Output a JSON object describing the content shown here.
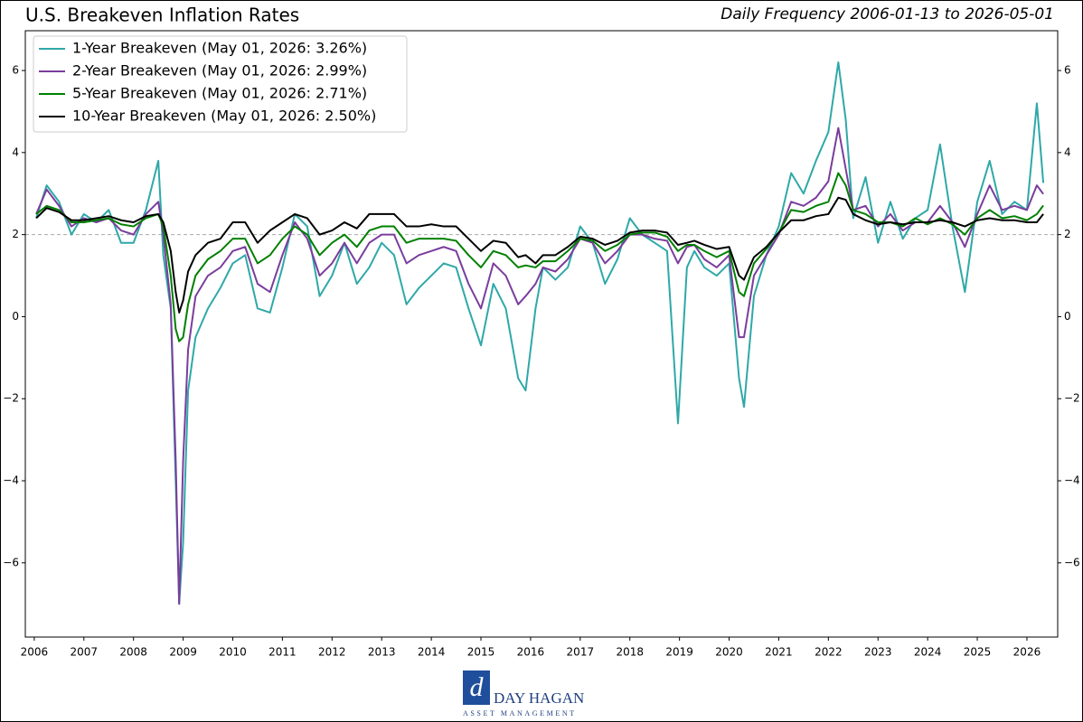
{
  "chart_data": {
    "type": "line",
    "title": "U.S. Breakeven Inflation Rates",
    "subtitle": "Daily Frequency 2006-01-13 to 2026-05-01",
    "x": [
      2006.04,
      2006.25,
      2006.5,
      2006.75,
      2007.0,
      2007.25,
      2007.5,
      2007.75,
      2008.0,
      2008.25,
      2008.5,
      2008.6,
      2008.75,
      2008.85,
      2008.92,
      2009.0,
      2009.1,
      2009.25,
      2009.5,
      2009.75,
      2010.0,
      2010.25,
      2010.5,
      2010.75,
      2011.0,
      2011.25,
      2011.5,
      2011.75,
      2012.0,
      2012.25,
      2012.5,
      2012.75,
      2013.0,
      2013.25,
      2013.5,
      2013.75,
      2014.0,
      2014.25,
      2014.5,
      2014.75,
      2015.0,
      2015.25,
      2015.5,
      2015.75,
      2015.9,
      2016.1,
      2016.25,
      2016.5,
      2016.75,
      2017.0,
      2017.25,
      2017.5,
      2017.75,
      2018.0,
      2018.25,
      2018.5,
      2018.75,
      2018.97,
      2019.15,
      2019.3,
      2019.5,
      2019.75,
      2020.0,
      2020.2,
      2020.3,
      2020.5,
      2020.75,
      2021.0,
      2021.25,
      2021.5,
      2021.75,
      2022.0,
      2022.2,
      2022.35,
      2022.5,
      2022.75,
      2023.0,
      2023.25,
      2023.5,
      2023.75,
      2024.0,
      2024.25,
      2024.5,
      2024.75,
      2025.0,
      2025.25,
      2025.5,
      2025.75,
      2026.0,
      2026.2,
      2026.33
    ],
    "series": [
      {
        "name": "1-Year Breakeven (May 01, 2026: 3.26%)",
        "color": "#2fa8a8",
        "values": [
          2.4,
          3.2,
          2.8,
          2.0,
          2.5,
          2.3,
          2.6,
          1.8,
          1.8,
          2.6,
          3.8,
          1.5,
          0.2,
          -4,
          -7.0,
          -5.5,
          -1.8,
          -0.5,
          0.2,
          0.7,
          1.3,
          1.5,
          0.2,
          0.1,
          1.2,
          2.5,
          2.2,
          0.5,
          1.0,
          1.8,
          0.8,
          1.2,
          1.8,
          1.5,
          0.3,
          0.7,
          1.0,
          1.3,
          1.2,
          0.2,
          -0.7,
          0.8,
          0.2,
          -1.5,
          -1.8,
          0.2,
          1.2,
          0.9,
          1.2,
          2.2,
          1.8,
          0.8,
          1.4,
          2.4,
          2.0,
          1.8,
          1.6,
          -2.6,
          1.2,
          1.6,
          1.2,
          1.0,
          1.3,
          -1.5,
          -2.2,
          0.5,
          1.5,
          2.2,
          3.5,
          3.0,
          3.8,
          4.5,
          6.2,
          4.8,
          2.4,
          3.4,
          1.8,
          2.8,
          1.9,
          2.4,
          2.6,
          4.2,
          2.2,
          0.6,
          2.8,
          3.8,
          2.5,
          2.8,
          2.6,
          5.2,
          3.26
        ]
      },
      {
        "name": "2-Year Breakeven (May 01, 2026: 2.99%)",
        "color": "#7a3d9c",
        "values": [
          2.5,
          3.1,
          2.7,
          2.2,
          2.4,
          2.3,
          2.4,
          2.1,
          2.0,
          2.5,
          2.8,
          2.0,
          0.3,
          -3.5,
          -7.0,
          -3.5,
          -0.8,
          0.5,
          1.0,
          1.2,
          1.6,
          1.7,
          0.8,
          0.6,
          1.5,
          2.3,
          1.9,
          1.0,
          1.3,
          1.8,
          1.3,
          1.8,
          2.0,
          2.0,
          1.3,
          1.5,
          1.6,
          1.7,
          1.6,
          0.8,
          0.2,
          1.3,
          1.0,
          0.3,
          0.5,
          0.8,
          1.2,
          1.1,
          1.4,
          1.9,
          1.8,
          1.3,
          1.6,
          2.0,
          2.0,
          1.9,
          1.85,
          1.3,
          1.7,
          1.75,
          1.4,
          1.2,
          1.5,
          -0.5,
          -0.5,
          1.0,
          1.5,
          2.0,
          2.8,
          2.7,
          2.9,
          3.3,
          4.6,
          3.6,
          2.6,
          2.7,
          2.2,
          2.5,
          2.1,
          2.3,
          2.3,
          2.7,
          2.3,
          1.7,
          2.5,
          3.2,
          2.6,
          2.7,
          2.6,
          3.2,
          2.99
        ]
      },
      {
        "name": "5-Year Breakeven (May 01, 2026: 2.71%)",
        "color": "#008000",
        "values": [
          2.5,
          2.7,
          2.6,
          2.3,
          2.3,
          2.35,
          2.4,
          2.25,
          2.2,
          2.4,
          2.5,
          2.2,
          1.0,
          -0.3,
          -0.6,
          -0.5,
          0.3,
          1.0,
          1.4,
          1.6,
          1.9,
          1.9,
          1.3,
          1.5,
          1.9,
          2.2,
          2.0,
          1.5,
          1.8,
          2.0,
          1.7,
          2.1,
          2.2,
          2.2,
          1.8,
          1.9,
          1.9,
          1.9,
          1.85,
          1.5,
          1.2,
          1.6,
          1.5,
          1.2,
          1.25,
          1.2,
          1.35,
          1.35,
          1.6,
          1.9,
          1.85,
          1.6,
          1.75,
          2.0,
          2.05,
          2.05,
          1.95,
          1.6,
          1.75,
          1.75,
          1.6,
          1.45,
          1.6,
          0.6,
          0.5,
          1.3,
          1.65,
          2.05,
          2.6,
          2.55,
          2.7,
          2.8,
          3.5,
          3.2,
          2.6,
          2.5,
          2.3,
          2.3,
          2.2,
          2.4,
          2.25,
          2.4,
          2.25,
          2.0,
          2.4,
          2.6,
          2.4,
          2.45,
          2.35,
          2.5,
          2.71
        ]
      },
      {
        "name": "10-Year Breakeven (May 01, 2026: 2.50%)",
        "color": "#000000",
        "values": [
          2.4,
          2.65,
          2.55,
          2.35,
          2.35,
          2.4,
          2.45,
          2.35,
          2.3,
          2.45,
          2.5,
          2.3,
          1.6,
          0.6,
          0.1,
          0.4,
          1.1,
          1.5,
          1.8,
          1.9,
          2.3,
          2.3,
          1.8,
          2.1,
          2.3,
          2.5,
          2.4,
          2.0,
          2.1,
          2.3,
          2.15,
          2.5,
          2.5,
          2.5,
          2.2,
          2.2,
          2.25,
          2.2,
          2.2,
          1.9,
          1.6,
          1.85,
          1.8,
          1.45,
          1.5,
          1.3,
          1.5,
          1.5,
          1.7,
          1.95,
          1.9,
          1.75,
          1.85,
          2.05,
          2.1,
          2.1,
          2.05,
          1.75,
          1.8,
          1.85,
          1.75,
          1.65,
          1.7,
          1.0,
          0.9,
          1.45,
          1.7,
          2.05,
          2.35,
          2.35,
          2.45,
          2.5,
          2.9,
          2.85,
          2.5,
          2.35,
          2.25,
          2.3,
          2.25,
          2.3,
          2.3,
          2.35,
          2.3,
          2.2,
          2.35,
          2.4,
          2.35,
          2.35,
          2.3,
          2.3,
          2.5
        ]
      }
    ],
    "xlim": [
      2005.82,
      2026.62
    ],
    "xticks": [
      2006,
      2007,
      2008,
      2009,
      2010,
      2011,
      2012,
      2013,
      2014,
      2015,
      2016,
      2017,
      2018,
      2019,
      2020,
      2021,
      2022,
      2023,
      2024,
      2025,
      2026
    ],
    "ylim": [
      -7.81,
      6.97
    ],
    "yticks": [
      {
        "value": -6,
        "label": "−6"
      },
      {
        "value": -4,
        "label": "−4"
      },
      {
        "value": -2,
        "label": "−2"
      },
      0,
      2,
      4,
      6
    ],
    "reference_line": 2,
    "legend": "upper left",
    "footer": {
      "logo_text": "DAY HAGAN",
      "logo_subtext": "ASSET MANAGEMENT"
    }
  }
}
